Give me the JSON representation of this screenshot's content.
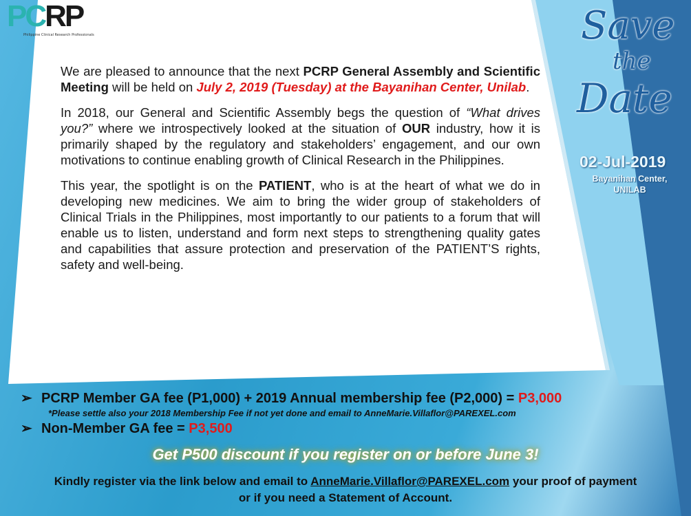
{
  "logo": {
    "text_pc": "PC",
    "text_rp": "RP",
    "tagline": "Philippine Clinical Research Professionals"
  },
  "save_the_date": {
    "w1": "Save",
    "w2": "the",
    "w3": "Date",
    "date": "02-Jul-2019",
    "venue_line1": "Bayanihan Center,",
    "venue_line2": "UNILAB"
  },
  "body": {
    "p1_a": "We are pleased to announce that the next ",
    "p1_b": "PCRP General Assembly and Scientific Meeting",
    "p1_c": " will be held on ",
    "p1_d": "July 2, 2019 (Tuesday) at the Bayanihan Center, Unilab",
    "p1_e": ".",
    "p2_a": "In 2018, our General and Scientific Assembly begs the question of ",
    "p2_b": "“What drives you?”",
    "p2_c": " where we introspectively looked at the situation of ",
    "p2_d": "OUR",
    "p2_e": " industry,  how it is primarily shaped by the regulatory and stakeholders’ engagement, and our own motivations to continue enabling growth of Clinical Research in the Philippines.",
    "p3_a": "This year, the spotlight is on the ",
    "p3_b": "PATIENT",
    "p3_c": ", who is at the heart of what we do in developing new medicines.  We aim to bring the wider group of stakeholders of Clinical Trials in the Philippines, most importantly to our patients to a forum that will enable us to listen, understand and form next steps to strengthening quality gates and capabilities that assure protection and preservation of the PATIENT’S rights, safety and well-being."
  },
  "fees": {
    "arrow": "➢",
    "member": "PCRP Member GA fee (P1,000) + 2019 Annual membership fee (P2,000) = ",
    "member_total": "P3,000",
    "note": "*Please settle also your 2018 Membership Fee if not yet done and email to AnneMarie.Villaflor@PAREXEL.com",
    "nonmember": "Non-Member GA fee = ",
    "nonmember_total": "P3,500"
  },
  "discount": "Get P500 discount if you register on or before June 3!",
  "register": {
    "a": "Kindly register via the link below and email to ",
    "email": "AnneMarie.Villaflor@PAREXEL.com",
    "b": " your proof of payment",
    "c": "or if you need a Statement of Account."
  },
  "colors": {
    "accent_red": "#e01b1b",
    "blue": "#2f9fcf",
    "teal": "#2bb3b0"
  }
}
